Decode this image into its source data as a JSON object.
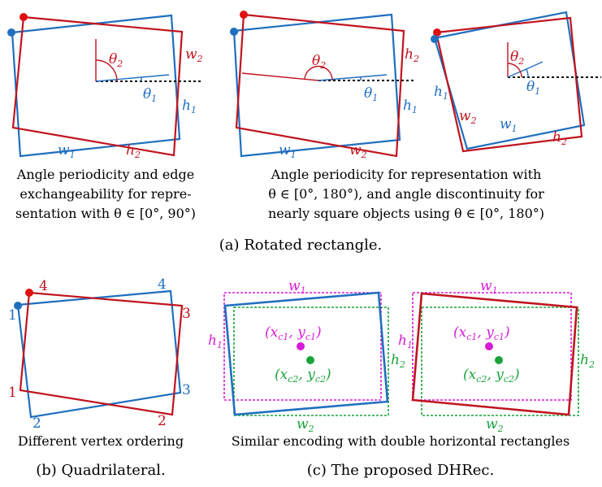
{
  "colors": {
    "red": "#c0141e",
    "blue": "#1f6fbf",
    "magenta": "#d81bd6",
    "green": "#1aa33a",
    "black": "#000000"
  },
  "panel1": {
    "theta2": "θ",
    "theta2_sub": "2",
    "theta1": "θ",
    "theta1_sub": "1",
    "w2": "w",
    "w2_sub": "2",
    "h1": "h",
    "h1_sub": "1",
    "w1": "w",
    "w1_sub": "1",
    "h2": "h",
    "h2_sub": "2",
    "caption": [
      "Angle periodicity and edge",
      "exchangeability for repre-",
      "sentation with  θ ∈ [0°, 90°)"
    ]
  },
  "panel2": {
    "theta2": "θ",
    "theta2_sub": "2",
    "theta1": "θ",
    "theta1_sub": "1",
    "h2": "h",
    "h2_sub": "2",
    "h1": "h",
    "h1_sub": "1",
    "w1": "w",
    "w1_sub": "1",
    "w2": "w",
    "w2_sub": "2"
  },
  "panel3": {
    "theta2": "θ",
    "theta2_sub": "2",
    "theta1": "θ",
    "theta1_sub": "1",
    "h1": "h",
    "h1_sub": "1",
    "w2": "w",
    "w2_sub": "2",
    "w1": "w",
    "w1_sub": "1",
    "h2": "h",
    "h2_sub": "2"
  },
  "top_right_caption": [
    "Angle periodicity for representation with",
    "θ ∈ [0°, 180°), and angle discontinuity for",
    "nearly square objects using  θ ∈ [0°, 180°)"
  ],
  "subcaption_a": "(a) Rotated rectangle.",
  "quad": {
    "v4_red": "4",
    "v4_blue": "4",
    "v1_blue": "1",
    "v3_red": "3",
    "v1_red": "1",
    "v3_blue": "3",
    "v2_blue": "2",
    "v2_red": "2",
    "caption": "Different vertex ordering"
  },
  "subcaption_b": "(b) Quadrilateral.",
  "dhrec": {
    "w1": "w",
    "w1_sub": "1",
    "h1": "h",
    "h1_sub": "1",
    "h2": "h",
    "h2_sub": "2",
    "w2": "w",
    "w2_sub": "2",
    "c1_x": "(x",
    "c1_xsub": "c1",
    "c1_mid": ", y",
    "c1_ysub": "c1",
    "c1_end": ")",
    "c2_x": "(x",
    "c2_xsub": "c2",
    "c2_mid": ", y",
    "c2_ysub": "c2",
    "c2_end": ")",
    "caption": "Similar encoding with double horizontal rectangles"
  },
  "subcaption_c": "(c) The proposed DHRec."
}
